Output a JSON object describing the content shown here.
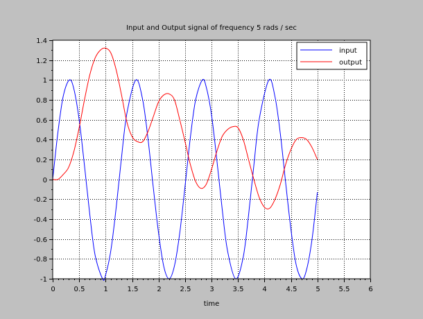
{
  "chart_data": {
    "type": "line",
    "title": "Input and Output signal of frequency 5 rads / sec",
    "xlabel": "time",
    "ylabel": "",
    "xlim": [
      0,
      6
    ],
    "ylim": [
      -1,
      1.4
    ],
    "grid": true,
    "legend_position": "top-right",
    "x_ticks": [
      "0",
      "0.5",
      "1",
      "1.5",
      "2",
      "2.5",
      "3",
      "3.5",
      "4",
      "4.5",
      "5",
      "5.5",
      "6"
    ],
    "y_ticks": [
      "-1",
      "-0.8",
      "-0.6",
      "-0.4",
      "-0.2",
      "0",
      "0.2",
      "0.4",
      "0.6",
      "0.8",
      "1",
      "1.2",
      "1.4"
    ],
    "series": [
      {
        "name": "input",
        "color": "#0000ff",
        "x": [
          0,
          0.1,
          0.2,
          0.314,
          0.4,
          0.5,
          0.6,
          0.7,
          0.8,
          0.942,
          1.0,
          1.1,
          1.2,
          1.3,
          1.4,
          1.571,
          1.7,
          1.8,
          1.9,
          2.0,
          2.1,
          2.2,
          2.3,
          2.4,
          2.5,
          2.6,
          2.7,
          2.827,
          2.9,
          3.0,
          3.1,
          3.2,
          3.3,
          3.456,
          3.6,
          3.7,
          3.8,
          3.9,
          4.084,
          4.2,
          4.3,
          4.4,
          4.5,
          4.6,
          4.712,
          4.8,
          4.9,
          5.0
        ],
        "values": [
          0,
          0.48,
          0.84,
          1.0,
          0.91,
          0.6,
          0.14,
          -0.35,
          -0.76,
          -1.0,
          -0.96,
          -0.71,
          -0.28,
          0.22,
          0.66,
          1.0,
          0.8,
          0.41,
          -0.08,
          -0.54,
          -0.88,
          -1.0,
          -0.87,
          -0.54,
          -0.07,
          0.42,
          0.8,
          1.0,
          0.93,
          0.65,
          0.2,
          -0.29,
          -0.71,
          -1.0,
          -0.78,
          -0.36,
          0.14,
          0.6,
          1.0,
          0.83,
          0.46,
          -0.03,
          -0.5,
          -0.86,
          -1.0,
          -0.9,
          -0.6,
          -0.13
        ]
      },
      {
        "name": "output",
        "color": "#ff0000",
        "x": [
          0,
          0.1,
          0.2,
          0.3,
          0.4,
          0.5,
          0.6,
          0.7,
          0.8,
          0.9,
          1.0,
          1.1,
          1.2,
          1.3,
          1.4,
          1.5,
          1.6,
          1.7,
          1.8,
          1.9,
          2.0,
          2.1,
          2.2,
          2.3,
          2.4,
          2.5,
          2.6,
          2.7,
          2.8,
          2.9,
          3.0,
          3.1,
          3.2,
          3.3,
          3.4,
          3.5,
          3.6,
          3.7,
          3.8,
          3.9,
          4.0,
          4.1,
          4.2,
          4.3,
          4.4,
          4.5,
          4.6,
          4.7,
          4.8,
          4.9,
          5.0
        ],
        "values": [
          0,
          0.0,
          0.05,
          0.12,
          0.28,
          0.52,
          0.8,
          1.05,
          1.22,
          1.3,
          1.32,
          1.27,
          1.1,
          0.85,
          0.58,
          0.43,
          0.38,
          0.38,
          0.48,
          0.63,
          0.78,
          0.85,
          0.86,
          0.8,
          0.6,
          0.38,
          0.15,
          -0.02,
          -0.09,
          -0.05,
          0.1,
          0.28,
          0.43,
          0.5,
          0.53,
          0.52,
          0.4,
          0.2,
          0.0,
          -0.18,
          -0.28,
          -0.29,
          -0.2,
          -0.05,
          0.15,
          0.3,
          0.4,
          0.42,
          0.4,
          0.32,
          0.2
        ]
      }
    ]
  }
}
